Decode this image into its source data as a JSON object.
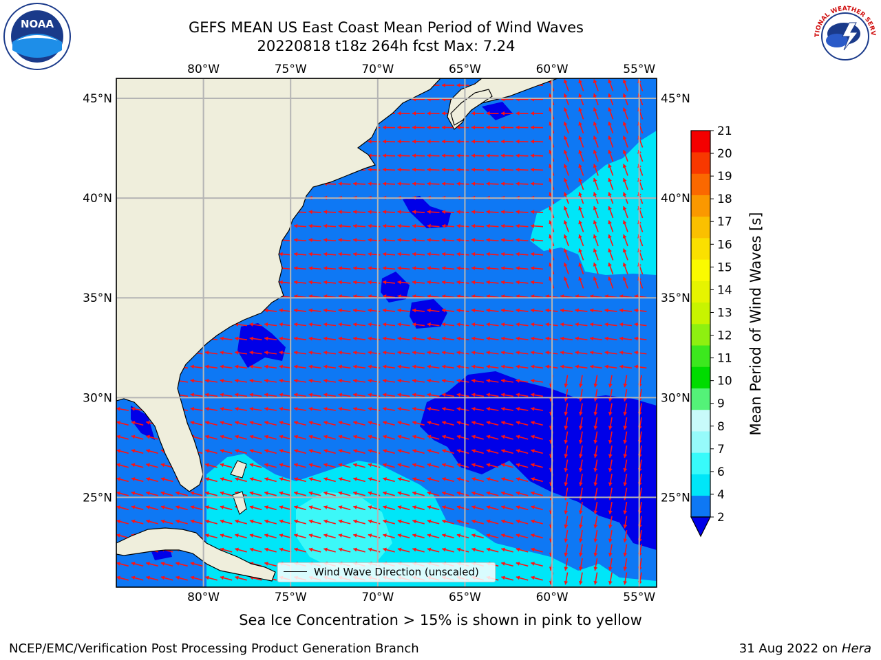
{
  "title": {
    "line1": "GEFS MEAN US East Coast Mean Period of Wind Waves",
    "line2": "20220818 t18z 264h fcst   Max: 7.24"
  },
  "logos": {
    "left": "noaa-logo",
    "left_text": "NOAA",
    "right": "nws-logo",
    "right_text": "NATIONAL WEATHER SERVICE"
  },
  "map": {
    "extent": {
      "lon": [
        -85,
        -54
      ],
      "lat": [
        20.5,
        46
      ]
    },
    "lon_ticks": [
      {
        "value": -80,
        "label": "80°W"
      },
      {
        "value": -75,
        "label": "75°W"
      },
      {
        "value": -70,
        "label": "70°W"
      },
      {
        "value": -65,
        "label": "65°W"
      },
      {
        "value": -60,
        "label": "60°W"
      },
      {
        "value": -55,
        "label": "55°W"
      }
    ],
    "lat_ticks": [
      {
        "value": 45,
        "label": "45°N"
      },
      {
        "value": 40,
        "label": "40°N"
      },
      {
        "value": 35,
        "label": "35°N"
      },
      {
        "value": 30,
        "label": "30°N"
      },
      {
        "value": 25,
        "label": "25°N"
      }
    ],
    "colors": {
      "land": "#efeedc",
      "ocean_2_4": "#0e78f4",
      "ocean_below_2": "#0000e8",
      "ocean_4_6": "#00e6f8",
      "ocean_6_7": "#3cf8f8",
      "grid": "#b4b4b4",
      "arrow": "#ff1212"
    },
    "legend_label": "Wind Wave Direction (unscaled)"
  },
  "colorbar": {
    "label": "Mean Period of Wind Waves [s]",
    "ticks": [
      "2",
      "4",
      "6",
      "7",
      "8",
      "9",
      "10",
      "11",
      "12",
      "13",
      "14",
      "15",
      "16",
      "17",
      "18",
      "19",
      "20",
      "21"
    ],
    "colors": [
      "#0e78f4",
      "#00e6f8",
      "#38fafa",
      "#96fafa",
      "#c8fafa",
      "#54f278",
      "#00dc00",
      "#3ce81e",
      "#8ef010",
      "#c8f400",
      "#e6f400",
      "#fafa00",
      "#fae000",
      "#fac000",
      "#fa9800",
      "#fa6800",
      "#f83800",
      "#f40000"
    ],
    "under_color": "#0000e8"
  },
  "ice_note": "Sea Ice Concentration > 15% is shown in pink to yellow",
  "footer": {
    "left": "NCEP/EMC/Verification Post Processing Product Generation Branch",
    "date": "31 Aug 2022 on ",
    "host": "Hera"
  }
}
